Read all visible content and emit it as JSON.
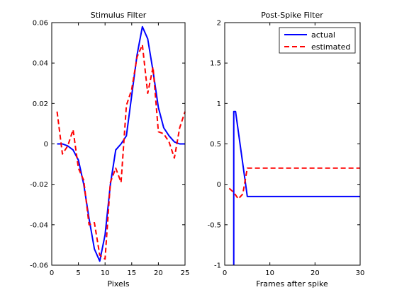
{
  "chart_data": [
    {
      "type": "line",
      "title": "Stimulus Filter",
      "xlabel": "Pixels",
      "ylabel": "",
      "xlim": [
        0,
        25
      ],
      "ylim": [
        -0.06,
        0.06
      ],
      "xticks": [
        0,
        5,
        10,
        15,
        20,
        25
      ],
      "yticks": [
        -0.06,
        -0.04,
        -0.02,
        0,
        0.02,
        0.04,
        0.06
      ],
      "ytick_labels": [
        "-0.06",
        "-0.04",
        "-0.02",
        "0",
        "0.02",
        "0.04",
        "0.06"
      ],
      "grid": false,
      "series": [
        {
          "key": "actual",
          "color": "#0000ff",
          "dash": "solid",
          "x": [
            1,
            2,
            3,
            4,
            5,
            6,
            7,
            8,
            9,
            10,
            11,
            12,
            13,
            14,
            15,
            16,
            17,
            18,
            19,
            20,
            21,
            22,
            23,
            24,
            25
          ],
          "y": [
            0,
            0,
            -0.001,
            -0.003,
            -0.008,
            -0.02,
            -0.037,
            -0.052,
            -0.058,
            -0.045,
            -0.02,
            -0.003,
            0.0,
            0.004,
            0.024,
            0.044,
            0.058,
            0.052,
            0.036,
            0.018,
            0.008,
            0.004,
            0.001,
            0,
            0
          ]
        },
        {
          "key": "estimated",
          "color": "#ff0000",
          "dash": "dashed",
          "x": [
            1,
            2,
            3,
            4,
            5,
            6,
            7,
            8,
            9,
            10,
            11,
            12,
            13,
            14,
            15,
            16,
            17,
            18,
            19,
            20,
            21,
            22,
            23,
            24,
            25
          ],
          "y": [
            0.016,
            -0.005,
            -0.001,
            0.007,
            -0.012,
            -0.018,
            -0.04,
            -0.039,
            -0.055,
            -0.057,
            -0.019,
            -0.012,
            -0.019,
            0.019,
            0.027,
            0.043,
            0.049,
            0.025,
            0.038,
            0.006,
            0.005,
            0.001,
            -0.007,
            0.008,
            0.016
          ]
        }
      ]
    },
    {
      "type": "line",
      "title": "Post-Spike Filter",
      "xlabel": "Frames after spike",
      "ylabel": "",
      "xlim": [
        0,
        30
      ],
      "ylim": [
        -1,
        2
      ],
      "xticks": [
        0,
        10,
        20,
        30
      ],
      "yticks": [
        -1,
        -0.5,
        0,
        0.5,
        1,
        1.5,
        2
      ],
      "ytick_labels": [
        "-1",
        "-0.5",
        "0",
        "0.5",
        "1",
        "1.5",
        "2"
      ],
      "grid": false,
      "legend": {
        "position": "top-right",
        "entries": [
          {
            "label": "actual",
            "color": "#0000ff",
            "dash": "solid"
          },
          {
            "label": "estimated",
            "color": "#ff0000",
            "dash": "dashed"
          }
        ]
      },
      "series": [
        {
          "key": "actual",
          "color": "#0000ff",
          "dash": "solid",
          "x": [
            2,
            2,
            2.4,
            5,
            30
          ],
          "y": [
            -1,
            0.9,
            0.9,
            -0.15,
            -0.15
          ]
        },
        {
          "key": "estimated",
          "color": "#ff0000",
          "dash": "dashed",
          "x": [
            1,
            2,
            3,
            4,
            5,
            6,
            30
          ],
          "y": [
            -0.05,
            -0.1,
            -0.18,
            -0.12,
            0.2,
            0.2,
            0.2
          ]
        }
      ]
    }
  ]
}
